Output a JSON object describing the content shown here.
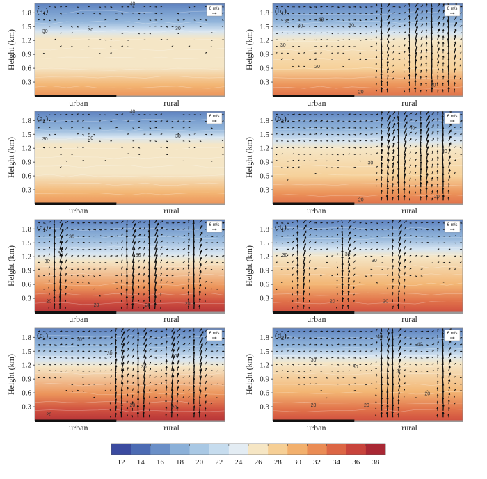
{
  "chart_data": {
    "type": "heatmap",
    "description_units": "height in km, temperature color scale",
    "colorbar": {
      "ticks": [
        "12",
        "14",
        "16",
        "18",
        "20",
        "22",
        "24",
        "26",
        "28",
        "30",
        "32",
        "34",
        "36",
        "38"
      ],
      "range": [
        11,
        39
      ],
      "colors": [
        "#3b4ba0",
        "#4c6bb3",
        "#6a8fc7",
        "#8bb0d8",
        "#a9c8e4",
        "#c6dcee",
        "#e3ecf3",
        "#f6e6c4",
        "#f6cf95",
        "#f2b06d",
        "#ea8c55",
        "#dc6645",
        "#c8443c",
        "#a92834"
      ]
    },
    "panels": [
      {
        "label": "(a",
        "sub": "1",
        "ref": "6 m/s",
        "surface_temp": 30,
        "boundary": 0.62,
        "activity": 0.05,
        "cells": [],
        "contours": [
          {
            "text": "40",
            "x": 0.5,
            "h": 1.96
          },
          {
            "text": "30",
            "x": 0.04,
            "h": 1.37
          },
          {
            "text": "30",
            "x": 0.28,
            "h": 1.4
          },
          {
            "text": "30",
            "x": 0.74,
            "h": 1.43
          }
        ]
      },
      {
        "label": "(b",
        "sub": "1",
        "ref": "6 m/s",
        "surface_temp": 32,
        "boundary": 0.6,
        "activity": 0.55,
        "cells": [
          0.58,
          0.74,
          0.84,
          0.93
        ],
        "contours": [
          {
            "text": "30",
            "x": 0.06,
            "h": 1.59
          },
          {
            "text": "30",
            "x": 0.13,
            "h": 1.48
          },
          {
            "text": "40",
            "x": 0.24,
            "h": 1.62
          },
          {
            "text": "30",
            "x": 0.4,
            "h": 1.5
          },
          {
            "text": "30",
            "x": 0.04,
            "h": 1.07
          },
          {
            "text": "20",
            "x": 0.22,
            "h": 0.6
          },
          {
            "text": "20",
            "x": 0.45,
            "h": 0.05
          },
          {
            "text": "20",
            "x": 0.83,
            "h": 0.2
          }
        ]
      },
      {
        "label": "(a",
        "sub": "2",
        "ref": "6 m/s",
        "surface_temp": 30,
        "boundary": 0.64,
        "activity": 0.05,
        "cells": [],
        "contours": [
          {
            "text": "40",
            "x": 0.5,
            "h": 1.96
          },
          {
            "text": "30",
            "x": 0.04,
            "h": 1.37
          },
          {
            "text": "30",
            "x": 0.28,
            "h": 1.38
          },
          {
            "text": "30",
            "x": 0.74,
            "h": 1.43
          }
        ]
      },
      {
        "label": "(b",
        "sub": "2",
        "ref": "6 m/s",
        "surface_temp": 32,
        "boundary": 0.6,
        "activity": 0.6,
        "cells": [
          0.6,
          0.68,
          0.8,
          0.9
        ],
        "contours": [
          {
            "text": "30",
            "x": 0.5,
            "h": 0.85
          },
          {
            "text": "40",
            "x": 0.72,
            "h": 1.6
          },
          {
            "text": "30",
            "x": 0.89,
            "h": 1.1
          },
          {
            "text": "20",
            "x": 0.45,
            "h": 0.05
          },
          {
            "text": "20",
            "x": 0.85,
            "h": 0.12
          }
        ]
      },
      {
        "label": "(c",
        "sub": "1",
        "ref": "6 m/s",
        "surface_temp": 36,
        "boundary": 0.55,
        "activity": 0.85,
        "cells": [
          0.12,
          0.5,
          0.62,
          0.84
        ],
        "contours": [
          {
            "text": "30",
            "x": 0.05,
            "h": 1.07
          },
          {
            "text": "30",
            "x": 0.12,
            "h": 1.25
          },
          {
            "text": "30",
            "x": 0.18,
            "h": 1.6
          },
          {
            "text": "30",
            "x": 0.53,
            "h": 1.2
          },
          {
            "text": "20",
            "x": 0.06,
            "h": 0.2
          },
          {
            "text": "20",
            "x": 0.31,
            "h": 0.12
          },
          {
            "text": "20",
            "x": 0.58,
            "h": 0.12
          },
          {
            "text": "20",
            "x": 0.79,
            "h": 0.15
          }
        ]
      },
      {
        "label": "(d",
        "sub": "1",
        "ref": "6 m/s",
        "surface_temp": 34,
        "boundary": 0.6,
        "activity": 0.4,
        "cells": [
          0.15,
          0.38,
          0.66
        ],
        "contours": [
          {
            "text": "30",
            "x": 0.05,
            "h": 1.2
          },
          {
            "text": "30",
            "x": 0.38,
            "h": 1.22
          },
          {
            "text": "30",
            "x": 0.52,
            "h": 1.08
          },
          {
            "text": "20",
            "x": 0.3,
            "h": 0.2
          },
          {
            "text": "20",
            "x": 0.58,
            "h": 0.2
          }
        ]
      },
      {
        "label": "(c",
        "sub": "2",
        "ref": "6 m/s",
        "surface_temp": 36,
        "boundary": 0.58,
        "activity": 0.75,
        "cells": [
          0.45,
          0.56,
          0.72,
          0.86
        ],
        "contours": [
          {
            "text": "30",
            "x": 0.22,
            "h": 1.72
          },
          {
            "text": "30",
            "x": 0.38,
            "h": 1.42
          },
          {
            "text": "30",
            "x": 0.72,
            "h": 1.37
          },
          {
            "text": "30",
            "x": 0.56,
            "h": 1.13
          },
          {
            "text": "20",
            "x": 0.5,
            "h": 0.3
          },
          {
            "text": "20",
            "x": 0.06,
            "h": 0.1
          },
          {
            "text": "20",
            "x": 0.72,
            "h": 0.25
          }
        ]
      },
      {
        "label": "(d",
        "sub": "2",
        "ref": "6 m/s",
        "surface_temp": 34,
        "boundary": 0.62,
        "activity": 0.55,
        "cells": [
          0.58,
          0.64,
          0.9
        ],
        "contours": [
          {
            "text": "40",
            "x": 0.55,
            "h": 1.78
          },
          {
            "text": "40",
            "x": 0.76,
            "h": 1.62
          },
          {
            "text": "30",
            "x": 0.2,
            "h": 1.28
          },
          {
            "text": "30",
            "x": 0.42,
            "h": 1.13
          },
          {
            "text": "30",
            "x": 0.65,
            "h": 1.03
          },
          {
            "text": "20",
            "x": 0.2,
            "h": 0.3
          },
          {
            "text": "20",
            "x": 0.48,
            "h": 0.3
          },
          {
            "text": "20",
            "x": 0.8,
            "h": 0.55
          }
        ]
      }
    ],
    "yaxis": {
      "label": "Height (km)",
      "ticks": [
        "0.3",
        "0.6",
        "0.9",
        "1.2",
        "1.5",
        "1.8"
      ],
      "tick_values": [
        0.3,
        0.6,
        0.9,
        1.2,
        1.5,
        1.8
      ],
      "range": [
        0,
        2.0
      ]
    },
    "xaxis": {
      "categories": [
        "urban",
        "rural"
      ]
    }
  }
}
